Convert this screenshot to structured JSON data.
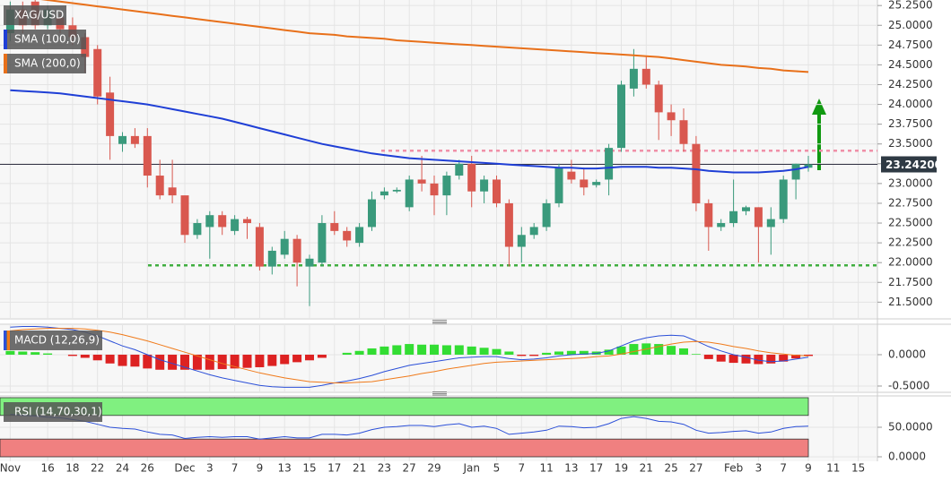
{
  "chart_data": [
    {
      "type": "candlestick",
      "instrument": "XAG/USD",
      "categories": [
        "Nov",
        null,
        null,
        "16",
        null,
        "18",
        null,
        "22",
        null,
        "24",
        null,
        "26",
        null,
        null,
        "Dec",
        null,
        "3",
        null,
        "7",
        null,
        "9",
        null,
        "13",
        null,
        "15",
        null,
        "17",
        null,
        "21",
        null,
        "23",
        null,
        "27",
        null,
        "29",
        null,
        null,
        "Jan",
        null,
        "5",
        null,
        "7",
        null,
        "11",
        null,
        "13",
        null,
        "17",
        null,
        "19",
        null,
        "21",
        null,
        "25",
        null,
        "27",
        null,
        null,
        "Feb",
        null,
        "3",
        null,
        "7",
        null,
        "9",
        null,
        "11",
        null,
        "15"
      ],
      "open": [
        24.9,
        25.2,
        25.3,
        25.0,
        25.1,
        25.0,
        24.85,
        24.7,
        24.15,
        23.5,
        23.6,
        23.6,
        23.1,
        22.95,
        22.85,
        22.35,
        22.45,
        22.6,
        22.4,
        22.55,
        22.45,
        21.95,
        22.1,
        22.3,
        21.95,
        22.0,
        22.5,
        22.4,
        22.25,
        22.45,
        22.85,
        22.9,
        22.7,
        23.05,
        23.0,
        22.85,
        23.1,
        23.25,
        22.9,
        23.05,
        22.75,
        22.2,
        22.35,
        22.45,
        22.75,
        23.15,
        23.05,
        22.98,
        23.05,
        23.45,
        24.2,
        24.45,
        24.25,
        23.9,
        23.8,
        23.5,
        22.75,
        22.45,
        22.5,
        22.65,
        22.7,
        22.45,
        22.55,
        23.05,
        23.2,
        null,
        null,
        null,
        null
      ],
      "high": [
        25.3,
        25.3,
        25.35,
        25.25,
        25.15,
        25.1,
        24.9,
        24.75,
        24.35,
        23.65,
        23.7,
        23.7,
        23.3,
        23.3,
        22.85,
        22.55,
        22.65,
        22.65,
        22.6,
        22.58,
        22.5,
        22.2,
        22.4,
        22.35,
        22.1,
        22.6,
        22.65,
        22.45,
        22.5,
        22.9,
        22.95,
        22.95,
        23.1,
        23.35,
        23.1,
        23.15,
        23.3,
        23.35,
        23.1,
        23.1,
        22.8,
        22.45,
        22.5,
        22.8,
        23.25,
        23.3,
        23.2,
        23.05,
        23.5,
        24.3,
        24.7,
        24.6,
        24.3,
        24.0,
        23.95,
        23.6,
        22.8,
        22.55,
        23.05,
        22.72,
        22.7,
        22.7,
        23.1,
        23.25,
        23.35,
        null,
        null,
        null,
        null
      ],
      "low": [
        24.8,
        24.9,
        24.95,
        24.95,
        24.9,
        24.75,
        24.4,
        24.0,
        23.3,
        23.4,
        23.45,
        22.95,
        22.8,
        22.75,
        22.25,
        22.3,
        22.05,
        22.35,
        22.35,
        22.3,
        21.9,
        21.85,
        22.05,
        21.7,
        21.45,
        21.95,
        22.35,
        22.2,
        22.2,
        22.4,
        22.8,
        22.88,
        22.65,
        22.9,
        22.6,
        22.6,
        23.05,
        22.7,
        22.75,
        22.7,
        21.95,
        22.0,
        22.3,
        22.4,
        22.7,
        23.0,
        22.85,
        22.95,
        22.85,
        23.4,
        24.1,
        24.2,
        23.55,
        23.6,
        23.4,
        22.65,
        22.15,
        22.4,
        22.45,
        22.6,
        22.0,
        22.1,
        22.5,
        22.8,
        23.15,
        null,
        null,
        null,
        null
      ],
      "close": [
        25.2,
        25.0,
        25.0,
        25.2,
        24.95,
        24.85,
        24.6,
        24.1,
        23.6,
        23.6,
        23.5,
        23.1,
        22.85,
        22.85,
        22.35,
        22.5,
        22.6,
        22.45,
        22.55,
        22.5,
        21.95,
        22.15,
        22.3,
        22.0,
        22.05,
        22.5,
        22.4,
        22.28,
        22.45,
        22.8,
        22.9,
        22.92,
        23.05,
        23.0,
        22.85,
        23.1,
        23.25,
        22.9,
        23.05,
        22.75,
        22.2,
        22.35,
        22.45,
        22.75,
        23.2,
        23.05,
        22.95,
        23.02,
        23.45,
        24.25,
        24.45,
        24.25,
        23.9,
        23.8,
        23.5,
        22.75,
        22.45,
        22.5,
        22.65,
        22.7,
        22.45,
        22.55,
        23.05,
        23.25,
        23.242,
        null,
        null,
        null,
        null
      ],
      "up_color": "#3a9a7c",
      "down_color": "#d9584f",
      "series": [
        {
          "name": "SMA (100,0)",
          "color": "#1f3fd6",
          "values": [
            24.18,
            24.17,
            24.16,
            24.15,
            24.14,
            24.12,
            24.1,
            24.08,
            24.06,
            24.04,
            24.02,
            24.0,
            23.97,
            23.94,
            23.91,
            23.88,
            23.85,
            23.82,
            23.78,
            23.74,
            23.7,
            23.66,
            23.62,
            23.58,
            23.54,
            23.5,
            23.47,
            23.44,
            23.41,
            23.38,
            23.36,
            23.34,
            23.32,
            23.31,
            23.3,
            23.29,
            23.28,
            23.27,
            23.26,
            23.25,
            23.24,
            23.23,
            23.22,
            23.21,
            23.2,
            23.2,
            23.19,
            23.19,
            23.2,
            23.21,
            23.21,
            23.21,
            23.2,
            23.2,
            23.19,
            23.18,
            23.16,
            23.15,
            23.14,
            23.14,
            23.14,
            23.15,
            23.16,
            23.18,
            23.21,
            null,
            null,
            null,
            null
          ]
        },
        {
          "name": "SMA (200,0)",
          "color": "#e8701a",
          "values": [
            25.38,
            25.36,
            25.34,
            25.32,
            25.3,
            25.28,
            25.26,
            25.24,
            25.22,
            25.2,
            25.18,
            25.16,
            25.14,
            25.12,
            25.1,
            25.08,
            25.06,
            25.04,
            25.02,
            25.0,
            24.98,
            24.96,
            24.94,
            24.92,
            24.9,
            24.89,
            24.88,
            24.86,
            24.85,
            24.84,
            24.83,
            24.81,
            24.8,
            24.79,
            24.78,
            24.77,
            24.76,
            24.75,
            24.74,
            24.73,
            24.72,
            24.71,
            24.7,
            24.69,
            24.68,
            24.67,
            24.66,
            24.65,
            24.64,
            24.63,
            24.62,
            24.61,
            24.6,
            24.58,
            24.56,
            24.54,
            24.52,
            24.5,
            24.49,
            24.48,
            24.46,
            24.45,
            24.43,
            24.42,
            24.41,
            null,
            null,
            null,
            null
          ]
        }
      ],
      "hlines": [
        {
          "value": 23.415,
          "color": "#f090a8"
        },
        {
          "value": 21.965,
          "color": "#3fae3f"
        }
      ],
      "price_line": {
        "value": 23.242,
        "label": "23.24200"
      },
      "ylim": [
        21.3,
        25.32
      ],
      "yticks": [
        {
          "value": 25.25,
          "label": "25.2500"
        },
        {
          "value": 25.0,
          "label": "25.0000"
        },
        {
          "value": 24.75,
          "label": "24.7500"
        },
        {
          "value": 24.5,
          "label": "24.5000"
        },
        {
          "value": 24.25,
          "label": "24.2500"
        },
        {
          "value": 24.0,
          "label": "24.0000"
        },
        {
          "value": 23.75,
          "label": "23.7500"
        },
        {
          "value": 23.5,
          "label": "23.5000"
        },
        {
          "value": 23.25,
          "label": "23.2500"
        },
        {
          "value": 23.0,
          "label": "23.0000"
        },
        {
          "value": 22.75,
          "label": "22.7500"
        },
        {
          "value": 22.5,
          "label": "22.5000"
        },
        {
          "value": 22.25,
          "label": "22.2500"
        },
        {
          "value": 22.0,
          "label": "22.0000"
        },
        {
          "value": 21.75,
          "label": "21.7500"
        },
        {
          "value": 21.5,
          "label": "21.5000"
        }
      ],
      "grid": true
    },
    {
      "type": "macd",
      "label": "MACD (12,26,9)",
      "series": [
        {
          "color": "#2b4fd8",
          "values": [
            0.44,
            0.45,
            0.45,
            0.44,
            0.42,
            0.4,
            0.36,
            0.3,
            0.22,
            0.14,
            0.08,
            0.0,
            -0.08,
            -0.14,
            -0.2,
            -0.26,
            -0.32,
            -0.37,
            -0.41,
            -0.45,
            -0.49,
            -0.51,
            -0.52,
            -0.52,
            -0.52,
            -0.49,
            -0.45,
            -0.42,
            -0.38,
            -0.33,
            -0.27,
            -0.22,
            -0.17,
            -0.14,
            -0.11,
            -0.08,
            -0.05,
            -0.04,
            -0.03,
            -0.03,
            -0.06,
            -0.08,
            -0.07,
            -0.05,
            -0.02,
            0.0,
            0.01,
            0.02,
            0.06,
            0.14,
            0.22,
            0.27,
            0.3,
            0.31,
            0.3,
            0.22,
            0.13,
            0.06,
            0.0,
            -0.04,
            -0.09,
            -0.11,
            -0.1,
            -0.07,
            -0.04,
            null,
            null,
            null,
            null
          ]
        },
        {
          "color": "#f07a1a",
          "values": [
            0.38,
            0.4,
            0.41,
            0.42,
            0.42,
            0.42,
            0.41,
            0.39,
            0.36,
            0.32,
            0.27,
            0.22,
            0.16,
            0.1,
            0.04,
            -0.02,
            -0.08,
            -0.14,
            -0.19,
            -0.24,
            -0.29,
            -0.33,
            -0.37,
            -0.4,
            -0.43,
            -0.44,
            -0.45,
            -0.45,
            -0.44,
            -0.43,
            -0.4,
            -0.37,
            -0.34,
            -0.3,
            -0.27,
            -0.23,
            -0.2,
            -0.17,
            -0.14,
            -0.12,
            -0.11,
            -0.1,
            -0.09,
            -0.08,
            -0.07,
            -0.06,
            -0.05,
            -0.03,
            -0.02,
            0.01,
            0.05,
            0.09,
            0.13,
            0.17,
            0.2,
            0.21,
            0.2,
            0.17,
            0.13,
            0.1,
            0.06,
            0.03,
            0.01,
            -0.01,
            -0.02,
            null,
            null,
            null,
            null
          ]
        }
      ],
      "histogram": [
        0.06,
        0.05,
        0.04,
        0.02,
        0.0,
        -0.02,
        -0.05,
        -0.09,
        -0.14,
        -0.18,
        -0.19,
        -0.22,
        -0.24,
        -0.24,
        -0.24,
        -0.24,
        -0.24,
        -0.23,
        -0.22,
        -0.21,
        -0.2,
        -0.18,
        -0.15,
        -0.12,
        -0.09,
        -0.05,
        0.0,
        0.03,
        0.06,
        0.1,
        0.13,
        0.15,
        0.17,
        0.16,
        0.16,
        0.15,
        0.15,
        0.13,
        0.11,
        0.09,
        0.05,
        -0.02,
        -0.02,
        0.03,
        0.05,
        0.06,
        0.06,
        0.05,
        0.08,
        0.13,
        0.17,
        0.18,
        0.17,
        0.14,
        0.1,
        0.01,
        -0.07,
        -0.11,
        -0.13,
        -0.14,
        -0.15,
        -0.14,
        -0.11,
        -0.06,
        -0.02,
        null,
        null,
        null,
        null
      ],
      "up_color": "#33dd33",
      "down_color": "#dd2222",
      "ylim": [
        -0.586,
        0.471
      ],
      "yticks": [
        {
          "value": 0,
          "label": "0.0000"
        },
        {
          "value": -0.5,
          "label": "-0.5000"
        }
      ],
      "grid": true
    },
    {
      "type": "rsi",
      "label": "RSI (14,70,30,1)",
      "series": [
        {
          "color": "#2b4fd8",
          "values": [
            72,
            70,
            69,
            67,
            66,
            63,
            60,
            55,
            50,
            48,
            47,
            42,
            38,
            37,
            31,
            33,
            34,
            33,
            34,
            34,
            30,
            32,
            34,
            32,
            32,
            38,
            38,
            37,
            40,
            46,
            50,
            51,
            53,
            53,
            51,
            54,
            56,
            50,
            52,
            48,
            38,
            40,
            42,
            45,
            52,
            51,
            49,
            50,
            56,
            65,
            68,
            65,
            60,
            59,
            55,
            45,
            40,
            41,
            43,
            44,
            40,
            42,
            48,
            51,
            52,
            null,
            null,
            null,
            null
          ]
        }
      ],
      "bands": [
        {
          "from": 70,
          "to": 100,
          "color": "#80f080"
        },
        {
          "from": 0,
          "to": 30,
          "color": "#f08080"
        }
      ],
      "ylim": [
        -7.6,
        101.5
      ],
      "yticks": [
        {
          "value": 50,
          "label": "50.0000"
        },
        {
          "value": 0,
          "label": "0.0000"
        }
      ],
      "grid": true
    }
  ]
}
